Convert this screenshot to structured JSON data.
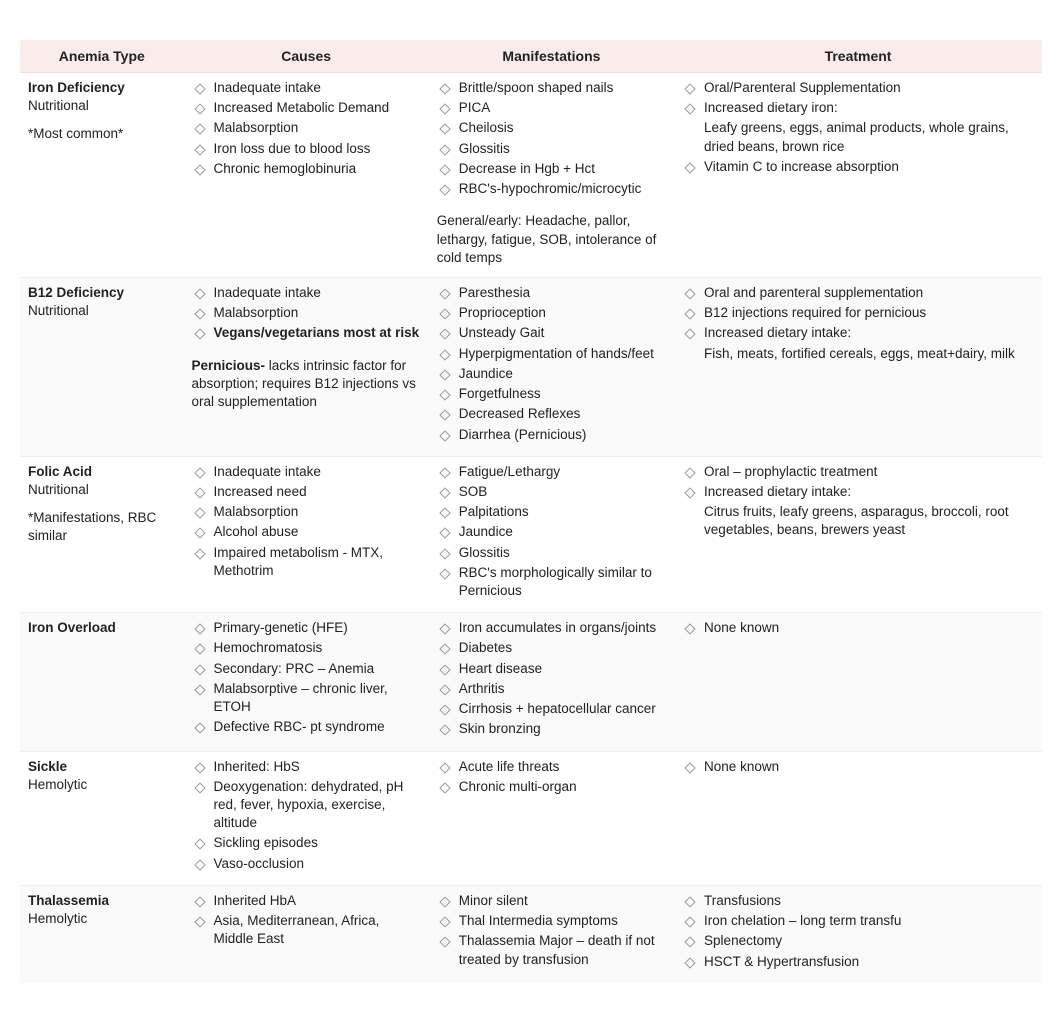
{
  "headers": [
    "Anemia Type",
    "Causes",
    "Manifestations",
    "Treatment"
  ],
  "rows": [
    {
      "type_name": "Iron Deficiency",
      "type_sub": "Nutritional",
      "type_note": "*Most common*",
      "causes": {
        "bullets": [
          {
            "text": "Inadequate intake"
          },
          {
            "text": "Increased Metabolic Demand"
          },
          {
            "text": "Malabsorption"
          },
          {
            "text": "Iron loss due to blood loss"
          },
          {
            "text": "Chronic hemoglobinuria"
          }
        ],
        "extra_bold": "",
        "extra_text": ""
      },
      "manifestations": {
        "bullets": [
          {
            "text": "Brittle/spoon shaped nails"
          },
          {
            "text": "PICA"
          },
          {
            "text": "Cheilosis"
          },
          {
            "text": "Glossitis"
          },
          {
            "text": "Decrease in Hgb + Hct"
          },
          {
            "text": "RBC's-hypochromic/microcytic"
          }
        ],
        "extra_bold": "",
        "extra_text": "General/early: Headache, pallor, lethargy, fatigue, SOB, intolerance of cold temps"
      },
      "treatment": {
        "bullets": [
          {
            "text": "Oral/Parenteral Supplementation"
          },
          {
            "text": "Increased dietary iron:"
          },
          {
            "text": "Leafy greens, eggs, animal products, whole grains, dried beans, brown rice",
            "no_marker": true
          },
          {
            "text": "Vitamin C to increase absorption"
          }
        ],
        "extra_bold": "",
        "extra_text": ""
      }
    },
    {
      "type_name": "B12 Deficiency",
      "type_sub": "Nutritional",
      "type_note": "",
      "causes": {
        "bullets": [
          {
            "text": "Inadequate intake"
          },
          {
            "text": "Malabsorption"
          },
          {
            "text": "Vegans/vegetarians most at risk",
            "bold": true
          }
        ],
        "extra_bold": "Pernicious-",
        "extra_text": " lacks intrinsic factor for absorption; requires B12 injections vs oral supplementation"
      },
      "manifestations": {
        "bullets": [
          {
            "text": "Paresthesia"
          },
          {
            "text": "Proprioception"
          },
          {
            "text": "Unsteady Gait"
          },
          {
            "text": "Hyperpigmentation of hands/feet"
          },
          {
            "text": "Jaundice"
          },
          {
            "text": "Forgetfulness"
          },
          {
            "text": "Decreased Reflexes"
          },
          {
            "text": "Diarrhea (Pernicious)"
          }
        ],
        "extra_bold": "",
        "extra_text": ""
      },
      "treatment": {
        "bullets": [
          {
            "text": "Oral and parenteral supplementation"
          },
          {
            "text": "B12 injections required for pernicious"
          },
          {
            "text": "Increased dietary intake:"
          },
          {
            "text": "Fish, meats, fortified cereals, eggs, meat+dairy, milk",
            "no_marker": true
          }
        ],
        "extra_bold": "",
        "extra_text": ""
      }
    },
    {
      "type_name": "Folic Acid",
      "type_sub": "Nutritional",
      "type_note": "*Manifestations, RBC similar",
      "causes": {
        "bullets": [
          {
            "text": "Inadequate intake"
          },
          {
            "text": "Increased need"
          },
          {
            "text": "Malabsorption"
          },
          {
            "text": "Alcohol abuse"
          },
          {
            "text": "Impaired metabolism - MTX, Methotrim"
          }
        ],
        "extra_bold": "",
        "extra_text": ""
      },
      "manifestations": {
        "bullets": [
          {
            "text": "Fatigue/Lethargy"
          },
          {
            "text": "SOB"
          },
          {
            "text": "Palpitations"
          },
          {
            "text": "Jaundice"
          },
          {
            "text": "Glossitis"
          },
          {
            "text": "RBC's morphologically similar to Pernicious"
          }
        ],
        "extra_bold": "",
        "extra_text": ""
      },
      "treatment": {
        "bullets": [
          {
            "text": "Oral – prophylactic treatment"
          },
          {
            "text": "Increased dietary intake:"
          },
          {
            "text": "Citrus fruits, leafy greens, asparagus, broccoli, root vegetables, beans, brewers yeast",
            "no_marker": true
          }
        ],
        "extra_bold": "",
        "extra_text": ""
      }
    },
    {
      "type_name": "Iron Overload",
      "type_sub": "",
      "type_note": "",
      "causes": {
        "bullets": [
          {
            "text": "Primary-genetic (HFE)"
          },
          {
            "text": "Hemochromatosis"
          },
          {
            "text": "Secondary: PRC – Anemia"
          },
          {
            "text": "Malabsorptive – chronic liver, ETOH"
          },
          {
            "text": "Defective RBC- pt syndrome"
          }
        ],
        "extra_bold": "",
        "extra_text": ""
      },
      "manifestations": {
        "bullets": [
          {
            "text": "Iron accumulates in organs/joints"
          },
          {
            "text": "Diabetes"
          },
          {
            "text": "Heart disease"
          },
          {
            "text": "Arthritis"
          },
          {
            "text": "Cirrhosis + hepatocellular cancer"
          },
          {
            "text": "Skin bronzing"
          }
        ],
        "extra_bold": "",
        "extra_text": ""
      },
      "treatment": {
        "bullets": [
          {
            "text": "None known"
          }
        ],
        "extra_bold": "",
        "extra_text": ""
      }
    },
    {
      "type_name": "Sickle",
      "type_sub": "Hemolytic",
      "type_note": "",
      "causes": {
        "bullets": [
          {
            "text": "Inherited: HbS"
          },
          {
            "text": "Deoxygenation: dehydrated, pH red, fever, hypoxia, exercise, altitude"
          },
          {
            "text": "Sickling episodes"
          },
          {
            "text": "Vaso-occlusion"
          }
        ],
        "extra_bold": "",
        "extra_text": ""
      },
      "manifestations": {
        "bullets": [
          {
            "text": "Acute life threats"
          },
          {
            "text": "Chronic multi-organ"
          }
        ],
        "extra_bold": "",
        "extra_text": ""
      },
      "treatment": {
        "bullets": [
          {
            "text": "None known"
          }
        ],
        "extra_bold": "",
        "extra_text": ""
      }
    },
    {
      "type_name": "Thalassemia",
      "type_sub": "Hemolytic",
      "type_note": "",
      "causes": {
        "bullets": [
          {
            "text": "Inherited HbA"
          },
          {
            "text": "Asia, Mediterranean, Africa, Middle East"
          }
        ],
        "extra_bold": "",
        "extra_text": ""
      },
      "manifestations": {
        "bullets": [
          {
            "text": "Minor silent"
          },
          {
            "text": "Thal Intermedia symptoms"
          },
          {
            "text": "Thalassemia Major – death if not treated by transfusion"
          }
        ],
        "extra_bold": "",
        "extra_text": ""
      },
      "treatment": {
        "bullets": [
          {
            "text": "Transfusions"
          },
          {
            "text": "Iron chelation – long term transfu"
          },
          {
            "text": "Splenectomy"
          },
          {
            "text": "HSCT & Hypertransfusion"
          }
        ],
        "extra_bold": "",
        "extra_text": ""
      }
    }
  ]
}
